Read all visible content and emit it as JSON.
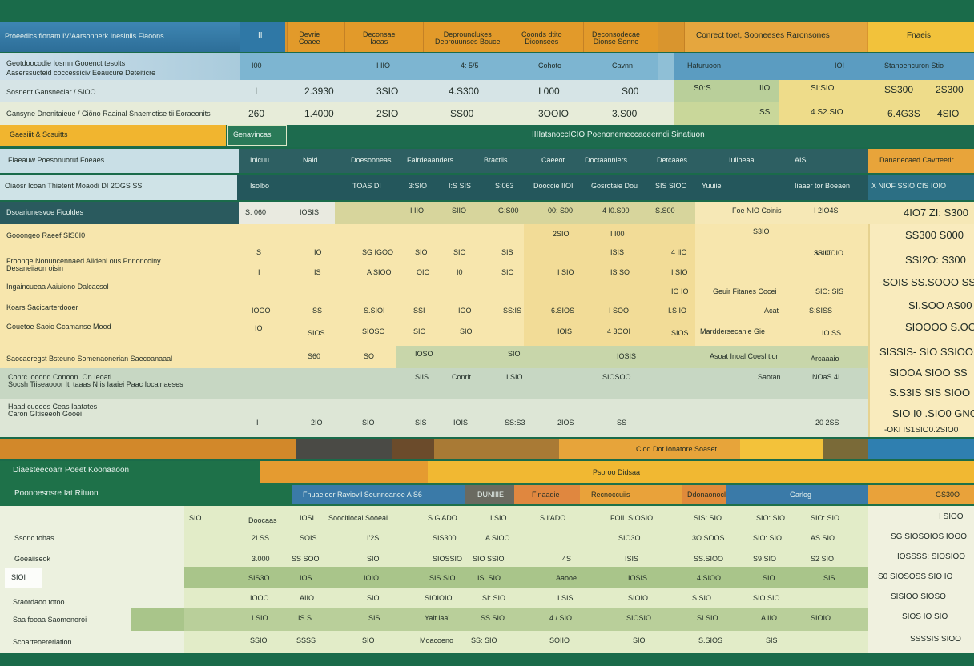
{
  "top_header": {
    "title": "Proeedics fionam IV/Aarsonnerk Inesiniis Fiaoons",
    "col_ii": "II",
    "col_devrie": "Devrie\nCoaee",
    "col_deconsae": "Deconsae\nIaeas",
    "col_deprounes": "Deprounclukes\nDeprouunses Bouce",
    "col_coonds": "Coonds dtito\nDiconsees",
    "col_deconsoa": "Deconsodecae\nDionse Sonne",
    "col_cooneesoneses": "Conrect toet, Sooneeses Raronsones",
    "col_fnaeis": "Fnaeis"
  },
  "top_sub": {
    "label_1": "Geotdoocodie Iosmn Gooenct tesolts",
    "label_2": "Aaserssucteid coccessiciv Eeaucure Deteiticre",
    "v1": "I00",
    "v2": "I IIO",
    "v3": "4: 5/5",
    "v4": "Cohotc",
    "v5": "Cavnn",
    "v6": "Haturuoon",
    "v7": "IOI",
    "v8": "Stanoencuron Stio"
  },
  "top_row1": {
    "label": "Sosnent Gansneciar / SIOO",
    "v": [
      "I",
      "2.3930",
      "3SIO",
      "4.S300",
      "I 000",
      "S00",
      "S0:S",
      "IIO",
      "SI:SIO",
      "SS300",
      "2S300"
    ]
  },
  "top_row2": {
    "label": "Gansyne Dnenitaieue / Ciöno Raainal Snaemctise tii Eoraeonits",
    "v": [
      "260",
      "1.4000",
      "2SIO",
      "SS00",
      "3OOIO",
      "3.S00",
      "SS",
      "4.S2.SIO",
      "6.4G3S",
      "4SIO"
    ]
  },
  "mid_header": {
    "tab": "Gaesiiit & Scsuitts",
    "tab2": "Genavincas",
    "title": "IIIIatsnoccICIO  Poenonemeccaceerndi Sinatiuon"
  },
  "mid_cols": {
    "label": "Fiaeauw Poesonuoruf Foeaes",
    "c": [
      "Inicuu",
      "Naid",
      "Doesooneas",
      "Fairdeaanders",
      "Bractiis",
      "Caeeot",
      "Doctaanniers",
      "Detcaaes",
      "Iuilbeaal",
      "AIS",
      "Dananecaed Cavrteetir"
    ]
  },
  "mid_row1": {
    "label": "Oiaosr Icoan  Thietent Moaodi DI 2OGS SS",
    "v": [
      "Isolbo",
      "TOAS DI",
      "3:SIO",
      "I:S SIS",
      "S:063",
      "Dooccie  IIOI",
      "Gosrotaie Dou",
      "SIS  SIOO",
      "Yuuiie",
      "Iiaaer tor Boeaen",
      "X NIOF SSIO  CIS IOIO"
    ]
  },
  "mid_row2": {
    "label": "Dsoariunesvoe Ficoldes",
    "v": [
      "S: 060",
      "IOSIS",
      "I IIO",
      "SIIO",
      "G:S00",
      "00: S00",
      "4 I0.S00",
      "S.S00",
      "Foe NIO Coinis",
      "I 2IO4S",
      "4IO7 ZI: S300"
    ]
  },
  "mid_rows": [
    {
      "label": "Gooongeo Raeef SIS0I0",
      "v": [
        "2SIO",
        "I I00",
        "S3IO ",
        "S3IOOIO",
        "SS300  S000"
      ]
    },
    {
      "label": "Froonqe Nonuncennaed Aiidenl ous Pnnoncoiny\nDesaneiiaon oisin",
      "v": [
        "S",
        "IO",
        "SG IGOO",
        "SIO",
        "SIO",
        "SIS",
        "ISIS",
        "4 IIO",
        "3S IO",
        "SSI2O: S300"
      ]
    },
    {
      "label": "Ingaincueaa  Aaiuiono Dalcacsol",
      "v": [
        "I",
        "IS",
        "A SIOO",
        "OIO",
        "I0",
        "SIO",
        "I SIO",
        "IS SO",
        "I SIO",
        "IO IO",
        "Geuir Fitanes Cocei",
        "SIO: SIS",
        "-SOIS SS.SOOO SS00"
      ]
    },
    {
      "label": "Koars  Sacicarterdooer",
      "v": [
        "IOOO",
        "SS",
        "S.SIOI",
        "SSI",
        "IOO",
        "SS:IS",
        "6.SIOS",
        "I SOO",
        "I.S IO",
        "Acat",
        "S:SISS",
        "SI.SOO  AS00"
      ]
    },
    {
      "label": "Gouetoe Saoic Gcamanse Mood",
      "v": [
        "IO",
        "SIOS",
        "SIOSO",
        "SIO",
        "SIO",
        "IOIS",
        "4 3OOI",
        "SIOS",
        "Marddersecanie Gie",
        "IO SS",
        "SIOOOO S.OOO"
      ]
    },
    {
      "label": "Saocaeregst Bsteuno Somenaonerian Saecoanaaal",
      "v": [
        "S60",
        "SO",
        "IOSO",
        "SIO",
        "IOSIS",
        "Asoat Inoal Coesl tior",
        "Arcaaaio",
        "SISSIS- SIO SSIOO"
      ]
    },
    {
      "label": "Conrc iooond Conoon  On Ieoatl\nSocsh Tiiseaooor Iti taaas N is Iaaiei Paac Iocainaeses",
      "v": [
        "SIIS",
        "Conrit",
        "I SIO",
        "SIOSOO",
        "Saotan",
        "NOaS 4I",
        "SIOOA SIOO SS"
      ]
    },
    {
      "label": "Haad cuooos Ceas Iaatates\nCaron GItiseeoh Gooei",
      "v": [
        "I",
        "2IO",
        "SIO",
        "SIS",
        "IOIS",
        "SS:S3",
        "2IOS",
        "SS",
        "20 2SS",
        "S.S3IS SIS SIOO"
      ]
    },
    {
      "label": "",
      "v": [
        "SIO I0 .SIO0 GNO"
      ]
    },
    {
      "label": "",
      "v": [
        "-OKI IS1SIO0.2SIO0"
      ]
    }
  ],
  "band_label": "Ciod Dot Ionatore Soaset",
  "bottom_header": {
    "title": "Diaesteecoarr Poeet Koonaaoon",
    "sub_title": "Poonoesnsre Iat Rituon",
    "tag": "Psoroo Didsaa",
    "cols": [
      "Fnuaeioer Raviov'l Seunnoanoe A S6",
      "DUNIIIE",
      "Finaadie",
      "Recnoccuiis",
      "Ddonaonocl",
      "Garlog",
      "GS30O"
    ]
  },
  "bottom_rows": [
    {
      "label": "",
      "v": [
        "SIO",
        "Doocaas",
        "IOSI",
        "Soocitiocal Sooeal",
        "S G'ADO",
        "I SIO",
        "S I'ADO",
        "FOIL SIOSIO",
        "SIS: SIO",
        "SIO: SIO",
        "SIO: SIO",
        "I SIOO"
      ]
    },
    {
      "label": "Ssonc tohas",
      "v": [
        "2I.SS",
        "SOIS",
        "I'2S",
        "SIS300",
        "A SIOO",
        "SIO3O",
        "3O.SOOS",
        "SIO: SIO",
        "AS SIO",
        "SG SIOSOIOS IOOO"
      ]
    },
    {
      "label": "Goeaiiseok",
      "v": [
        "3.000",
        "SS SOO",
        "SIO",
        "SIOSSIO",
        "SIO   SSIO",
        "4S",
        "ISIS",
        "SS.SIOO",
        "S9 SIO",
        "S2 SIO",
        "IOSSSS: SIOSIOO"
      ]
    },
    {
      "label": "SIOI",
      "v": [
        "SIS3O",
        "IOS",
        "IOIO",
        "SIS SIO",
        "IS. SIO",
        "Aaooe",
        "IOSIS",
        "4.SIOO",
        "SIO",
        "SIS",
        "S0 SIOSOSS SIO IO"
      ]
    },
    {
      "label": "Sraordaoo totoo",
      "v": [
        "IOOO",
        "AIIO",
        "SIO",
        "SIOIOIO",
        "SI: SIO",
        "I SIS",
        "SIOIO",
        "S.SIO",
        "SIO SIO",
        "SISIOO SIOSO"
      ]
    },
    {
      "label": "Saa fooaa Saomenoroi",
      "v": [
        "I SIO",
        "IS S",
        "SIS",
        "Yalt iaa'",
        "SS SIO",
        "4 / SIO",
        "SIOSIO",
        "SI SIO",
        "A IIO",
        "SIOIO",
        "SIOS IO SIO"
      ]
    },
    {
      "label": "Scoarteoereriation",
      "v": [
        "SSIO",
        "SSSS",
        "SIO",
        "Moacoeno",
        "SS: SIO",
        "SOIIO",
        "SIO",
        "S.SIOS",
        "SIS",
        "SSSSIS SIOO"
      ]
    }
  ],
  "colors": {
    "green_dark": "#1a6b4a",
    "teal": "#2f5f63",
    "blue": "#3a7aa8",
    "orange": "#e0982b",
    "yellow": "#f2c23b",
    "cream": "#f7e7b0",
    "pale_green": "#dfe8c8",
    "sage": "#b9cf9a"
  }
}
